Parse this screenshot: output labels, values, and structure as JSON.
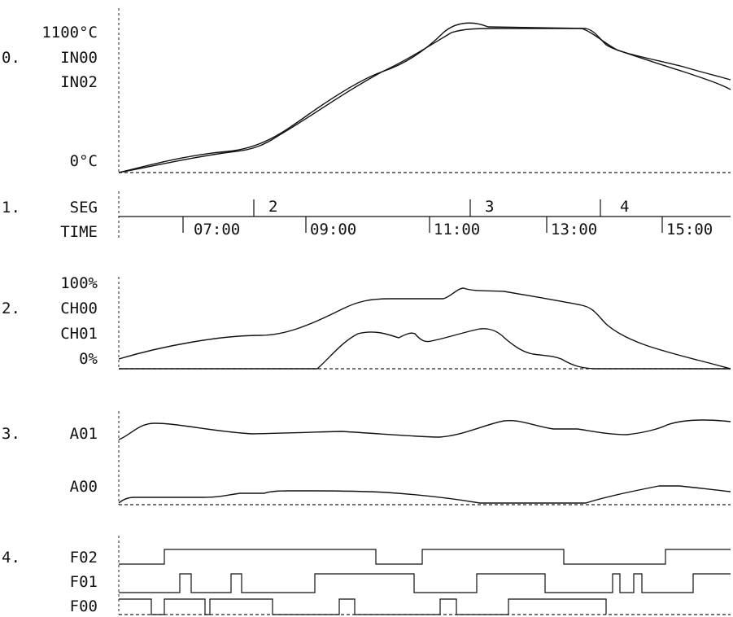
{
  "section1_index": "0.",
  "labels_temp": {
    "max": "1100°C",
    "ch_a": "IN00",
    "ch_b": "IN02",
    "min": "0°C"
  },
  "section2_index": "1.",
  "labels_seg": {
    "seg": "SEG",
    "time": "TIME"
  },
  "segments": [
    "2",
    "3",
    "4"
  ],
  "times": [
    "07:00",
    "09:00",
    "11:00",
    "13:00",
    "15:00"
  ],
  "section3_index": "2.",
  "labels_ch": {
    "max": "100%",
    "ch_a": "CH00",
    "ch_b": "CH01",
    "min": "0%"
  },
  "section4_index": "3.",
  "labels_a": {
    "a01": "A01",
    "a00": "A00"
  },
  "section5_index": "4.",
  "labels_f": {
    "f02": "F02",
    "f01": "F01",
    "f00": "F00"
  }
}
